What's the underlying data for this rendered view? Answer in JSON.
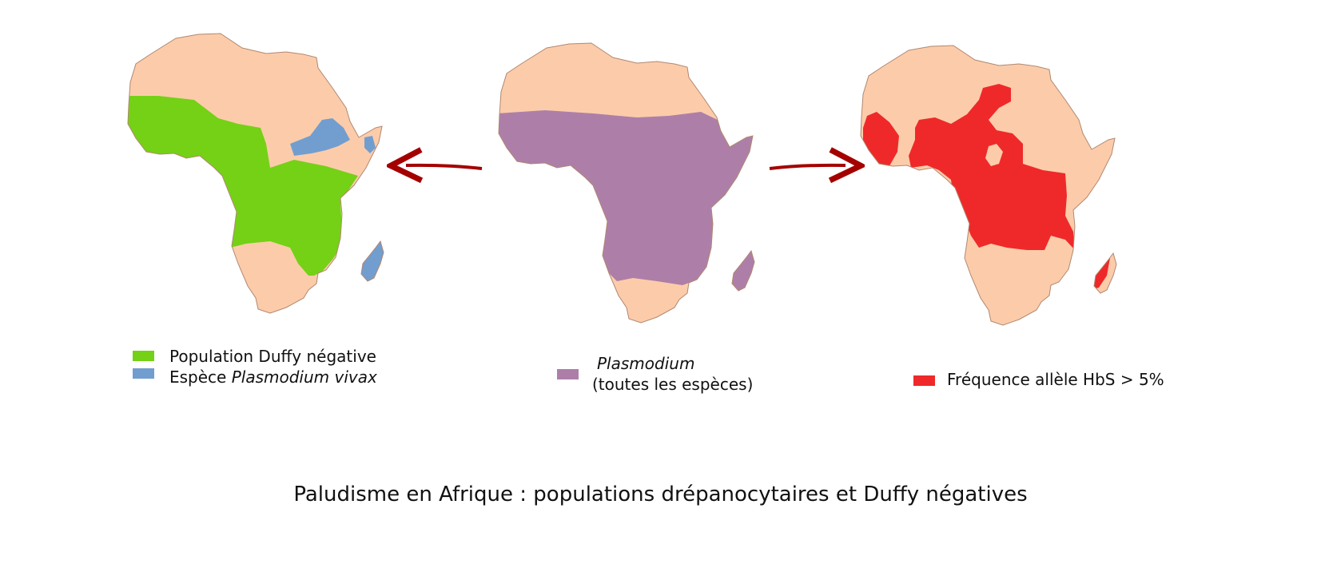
{
  "colors": {
    "land": "#FCCCAA",
    "duffy": "#74D116",
    "vivax": "#729ECF",
    "plasmodium": "#AD7FA8",
    "hbs": "#EF2929",
    "arrow": "#A40000",
    "outline": "#B08870"
  },
  "maps": [
    {
      "name": "duffy-vivax-map",
      "overlays": [
        "duffy",
        "vivax"
      ]
    },
    {
      "name": "plasmodium-map",
      "overlays": [
        "plasmodium"
      ]
    },
    {
      "name": "hbs-map",
      "overlays": [
        "hbs"
      ]
    }
  ],
  "legend_left": {
    "duffy_label": "Population Duffy négative",
    "vivax_prefix": "Espèce ",
    "vivax_italic": "Plasmodium vivax"
  },
  "legend_center": {
    "plasmodium_italic": "Plasmodium",
    "plasmodium_sub": "(toutes les espèces)"
  },
  "legend_right": {
    "hbs_label": "Fréquence allèle HbS > 5%"
  },
  "title": "Paludisme en Afrique : populations drépanocytaires et Duffy négatives"
}
